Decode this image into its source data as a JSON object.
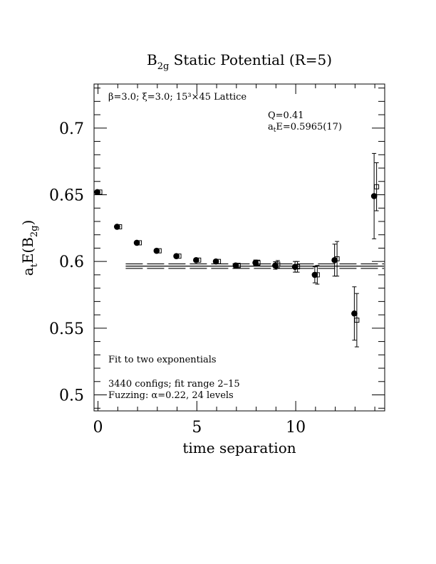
{
  "chart_data": {
    "type": "scatter",
    "title_main": "B",
    "title_sub": "2g",
    "title_rest": " Static Potential (R=5)",
    "xlabel": "time separation",
    "ylabel_a": "a",
    "ylabel_t": "t",
    "ylabel_E": "E(B",
    "ylabel_sub": "2g",
    "ylabel_close": ")",
    "xlim": [
      -0.2,
      14.5
    ],
    "ylim": [
      0.488,
      0.733
    ],
    "xticks": [
      0,
      5,
      10
    ],
    "yticks": [
      0.5,
      0.55,
      0.6,
      0.65,
      0.7
    ],
    "xtick_labels": [
      "0",
      "5",
      "10"
    ],
    "ytick_labels": [
      "0.5",
      "0.55",
      "0.6",
      "0.65",
      "0.7"
    ],
    "annotations": {
      "lattice": "β=3.0; ξ=3.0; 15³×45 Lattice",
      "q": "Q=0.41",
      "fit_a": "a",
      "fit_t": "t",
      "fit_rest": "E=0.5965(17)",
      "fit_type": "Fit to two exponentials",
      "configs": "3440 configs; fit range 2–15",
      "fuzzing": "Fuzzing: α=0.22, 24 levels"
    },
    "fit": {
      "value": 0.5965,
      "error": 0.0017,
      "t_start": 1.4,
      "t_end": 14.5
    },
    "series": [
      {
        "marker": "filled-circle",
        "x": [
          0,
          1,
          2,
          3,
          4,
          5,
          6,
          7,
          8,
          9,
          10,
          11,
          12,
          13,
          14
        ],
        "y": [
          0.652,
          0.626,
          0.614,
          0.608,
          0.604,
          0.601,
          0.6,
          0.597,
          0.599,
          0.597,
          0.596,
          0.59,
          0.601,
          0.561,
          0.649
        ],
        "err": [
          0.0008,
          0.0008,
          0.0009,
          0.001,
          0.0011,
          0.0012,
          0.0014,
          0.0017,
          0.0021,
          0.0028,
          0.004,
          0.006,
          0.012,
          0.02,
          0.032
        ]
      },
      {
        "marker": "open-square",
        "x": [
          0,
          1,
          2,
          3,
          4,
          5,
          6,
          7,
          8,
          9,
          10,
          11,
          12,
          13,
          14
        ],
        "y": [
          0.652,
          0.626,
          0.614,
          0.608,
          0.604,
          0.601,
          0.6,
          0.597,
          0.599,
          0.598,
          0.596,
          0.59,
          0.602,
          0.556,
          0.656
        ],
        "err": [
          0.0007,
          0.0007,
          0.0008,
          0.0009,
          0.001,
          0.0011,
          0.0013,
          0.0016,
          0.002,
          0.0027,
          0.004,
          0.007,
          0.013,
          0.02,
          0.018
        ]
      }
    ]
  }
}
